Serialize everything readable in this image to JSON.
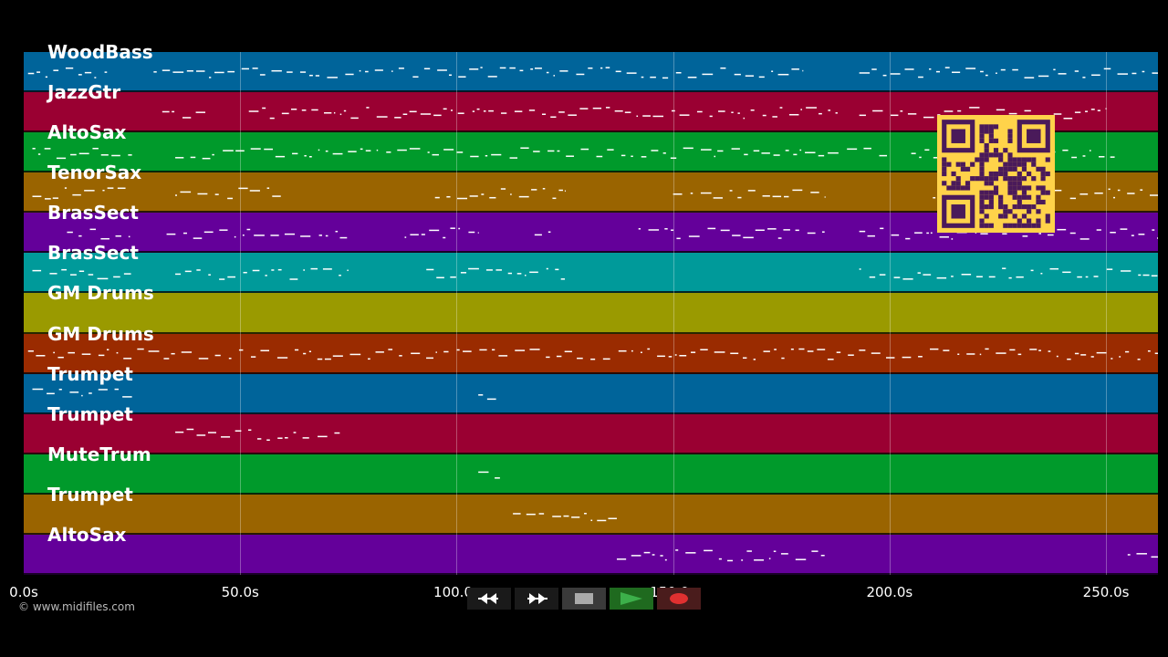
{
  "tracks": [
    {
      "name": "WoodBass",
      "color": "#00649a"
    },
    {
      "name": "JazzGtr",
      "color": "#9a0032"
    },
    {
      "name": "AltoSax",
      "color": "#009a2b"
    },
    {
      "name": "TenorSax",
      "color": "#9a6400"
    },
    {
      "name": "BrasSect",
      "color": "#64009a"
    },
    {
      "name": "BrasSect",
      "color": "#009a9a"
    },
    {
      "name": "GM Drums",
      "color": "#9a9a00"
    },
    {
      "name": "GM Drums",
      "color": "#9a2b00"
    },
    {
      "name": "Trumpet",
      "color": "#00649a"
    },
    {
      "name": "Trumpet",
      "color": "#9a0032"
    },
    {
      "name": "MuteTrum",
      "color": "#009a2b"
    },
    {
      "name": "Trumpet",
      "color": "#9a6400"
    },
    {
      "name": "AltoSax",
      "color": "#64009a"
    }
  ],
  "timeline": {
    "max_seconds": 262,
    "ticks": [
      {
        "value": 0,
        "label": "0.0s"
      },
      {
        "value": 50,
        "label": "50.0s"
      },
      {
        "value": 100,
        "label": "100.0s"
      },
      {
        "value": 150,
        "label": "150.0s"
      },
      {
        "value": 200,
        "label": "200.0s"
      },
      {
        "value": 250,
        "label": "250.0s"
      }
    ]
  },
  "copyright": "© www.midifiles.com",
  "controls": {
    "rewind": "rewind-icon",
    "fast_forward": "fast-forward-icon",
    "stop": "stop-icon",
    "play": "play-icon",
    "record": "record-icon"
  },
  "colors": {
    "play": "#3cb04a",
    "record": "#e03030",
    "qr_fg": "#4a1a5a",
    "qr_bg": "#ffd34a"
  }
}
